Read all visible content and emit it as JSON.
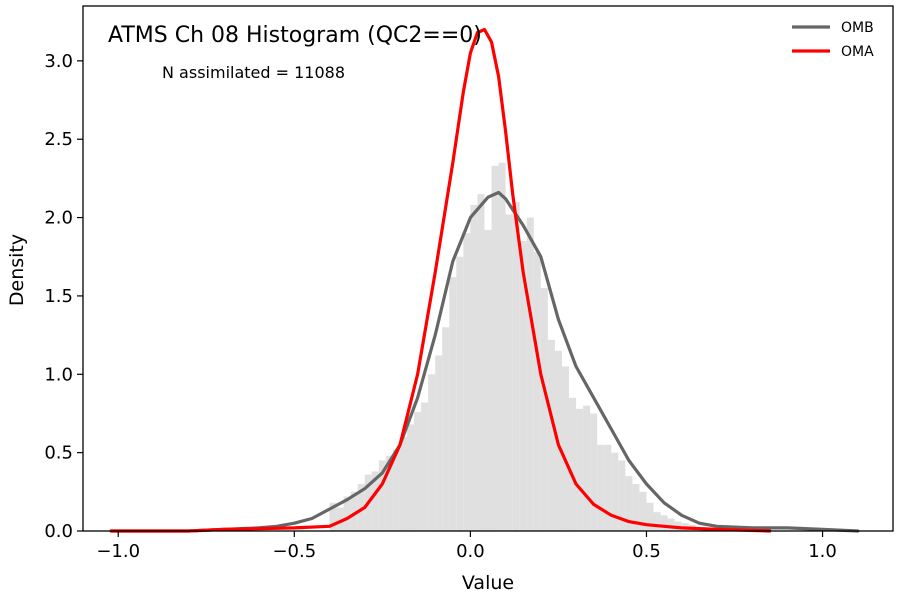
{
  "chart_data": {
    "type": "histogram",
    "title": "ATMS Ch 08 Histogram (QC2==0)",
    "annotation": "N assimilated = 11088",
    "xlabel": "Value",
    "ylabel": "Density",
    "xlim": [
      -1.1,
      1.2
    ],
    "ylim": [
      0.0,
      3.35
    ],
    "xticks": [
      -1.0,
      -0.5,
      0.0,
      0.5,
      1.0
    ],
    "xtick_labels": [
      "−1.0",
      "−0.5",
      "0.0",
      "0.5",
      "1.0"
    ],
    "yticks": [
      0.0,
      0.5,
      1.0,
      1.5,
      2.0,
      2.5,
      3.0
    ],
    "ytick_labels": [
      "0.0",
      "0.5",
      "1.0",
      "1.5",
      "2.0",
      "2.5",
      "3.0"
    ],
    "legend_position": "top-right",
    "histogram": {
      "color": "#e0e0e0",
      "bin_edges": [
        -0.4,
        -0.38,
        -0.36,
        -0.34,
        -0.32,
        -0.3,
        -0.28,
        -0.26,
        -0.24,
        -0.22,
        -0.2,
        -0.18,
        -0.16,
        -0.14,
        -0.12,
        -0.1,
        -0.08,
        -0.06,
        -0.04,
        -0.02,
        0.0,
        0.02,
        0.04,
        0.06,
        0.08,
        0.1,
        0.12,
        0.14,
        0.16,
        0.18,
        0.2,
        0.22,
        0.24,
        0.26,
        0.28,
        0.3,
        0.32,
        0.34,
        0.36,
        0.38,
        0.4,
        0.42,
        0.44,
        0.46,
        0.48,
        0.5,
        0.52,
        0.54,
        0.56,
        0.58,
        0.6,
        0.62,
        0.64
      ],
      "densities": [
        0.18,
        0.15,
        0.22,
        0.25,
        0.3,
        0.36,
        0.38,
        0.45,
        0.48,
        0.52,
        0.6,
        0.68,
        0.76,
        0.82,
        1.0,
        1.12,
        1.3,
        1.62,
        1.75,
        1.9,
        2.08,
        2.15,
        1.92,
        2.33,
        2.35,
        2.02,
        2.1,
        1.85,
        2.0,
        1.78,
        1.55,
        1.22,
        1.15,
        1.05,
        0.85,
        0.78,
        0.8,
        0.75,
        0.55,
        0.55,
        0.5,
        0.45,
        0.35,
        0.3,
        0.25,
        0.18,
        0.12,
        0.1,
        0.08,
        0.06,
        0.05,
        0.04
      ]
    },
    "series": [
      {
        "name": "OMB",
        "color": "#666666",
        "x": [
          -1.02,
          -0.8,
          -0.7,
          -0.6,
          -0.55,
          -0.5,
          -0.45,
          -0.4,
          -0.35,
          -0.3,
          -0.25,
          -0.2,
          -0.15,
          -0.1,
          -0.05,
          0.0,
          0.05,
          0.08,
          0.1,
          0.15,
          0.2,
          0.25,
          0.3,
          0.35,
          0.4,
          0.45,
          0.5,
          0.55,
          0.6,
          0.65,
          0.7,
          0.8,
          0.9,
          1.0,
          1.1
        ],
        "y": [
          0.0,
          0.0,
          0.01,
          0.02,
          0.03,
          0.05,
          0.08,
          0.14,
          0.2,
          0.27,
          0.37,
          0.55,
          0.85,
          1.25,
          1.72,
          2.0,
          2.13,
          2.16,
          2.12,
          1.95,
          1.75,
          1.35,
          1.05,
          0.85,
          0.65,
          0.45,
          0.3,
          0.18,
          0.1,
          0.05,
          0.03,
          0.02,
          0.02,
          0.01,
          0.0
        ]
      },
      {
        "name": "OMA",
        "color": "#ff0000",
        "x": [
          -1.02,
          -0.8,
          -0.7,
          -0.5,
          -0.4,
          -0.35,
          -0.3,
          -0.25,
          -0.2,
          -0.15,
          -0.1,
          -0.05,
          -0.02,
          0.0,
          0.02,
          0.04,
          0.06,
          0.08,
          0.1,
          0.12,
          0.15,
          0.2,
          0.25,
          0.3,
          0.35,
          0.4,
          0.45,
          0.5,
          0.55,
          0.6,
          0.7,
          0.85
        ],
        "y": [
          0.0,
          0.0,
          0.01,
          0.02,
          0.03,
          0.08,
          0.15,
          0.3,
          0.55,
          1.0,
          1.65,
          2.35,
          2.8,
          3.05,
          3.18,
          3.2,
          3.12,
          2.9,
          2.55,
          2.15,
          1.65,
          1.0,
          0.55,
          0.3,
          0.17,
          0.1,
          0.06,
          0.04,
          0.03,
          0.02,
          0.01,
          0.0
        ]
      }
    ]
  }
}
